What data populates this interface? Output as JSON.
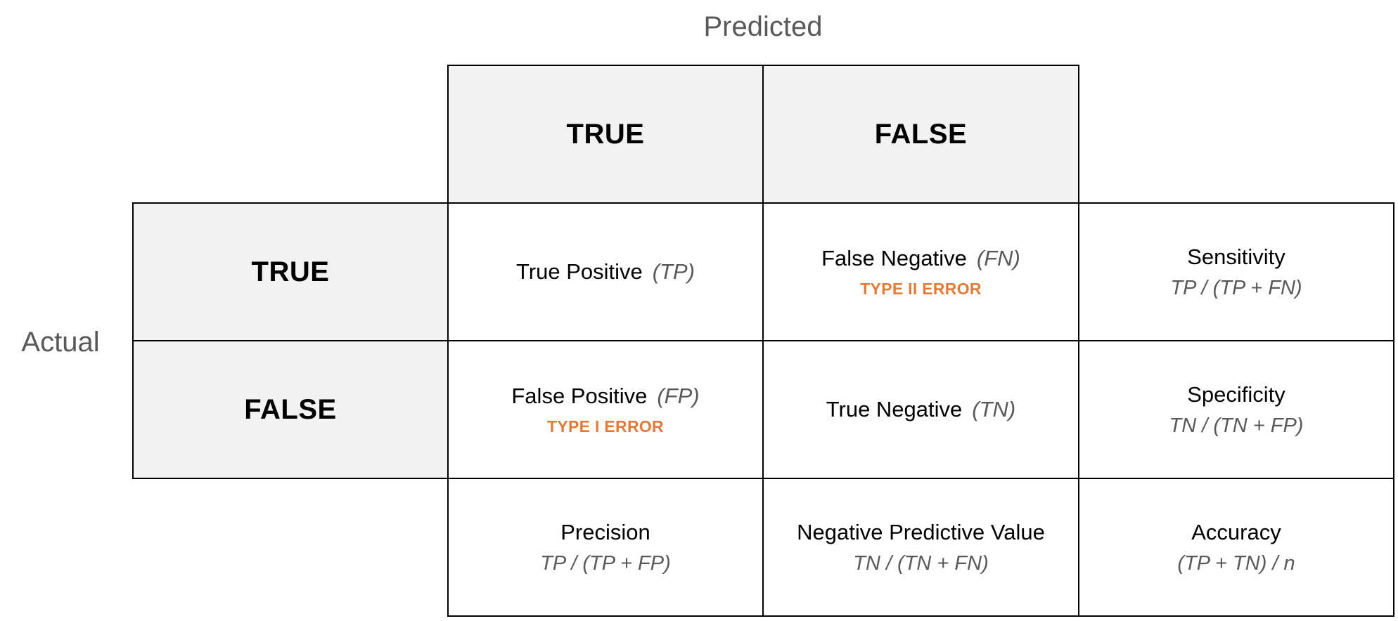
{
  "axis": {
    "predicted": "Predicted",
    "actual": "Actual"
  },
  "column_headers": {
    "true": "TRUE",
    "false": "FALSE"
  },
  "row_headers": {
    "true": "TRUE",
    "false": "FALSE"
  },
  "cells": {
    "tp": {
      "label": "True Positive",
      "abbr": "(TP)"
    },
    "fn": {
      "label": "False Negative",
      "abbr": "(FN)",
      "tag": "TYPE II ERROR"
    },
    "fp": {
      "label": "False Positive",
      "abbr": "(FP)",
      "tag": "TYPE I ERROR"
    },
    "tn": {
      "label": "True Negative",
      "abbr": "(TN)"
    }
  },
  "metrics": {
    "sensitivity": {
      "label": "Sensitivity",
      "formula": "TP / (TP + FN)"
    },
    "specificity": {
      "label": "Specificity",
      "formula": "TN / (TN + FP)"
    },
    "precision": {
      "label": "Precision",
      "formula": "TP / (TP + FP)"
    },
    "npv": {
      "label": "Negative Predictive Value",
      "formula": "TN / (TN + FN)"
    },
    "accuracy": {
      "label": "Accuracy",
      "formula": "(TP + TN) / n"
    }
  },
  "colors": {
    "header_fill": "#f2f2f2",
    "border": "#000000",
    "secondary_text": "#595959",
    "error_accent": "#e07b39"
  }
}
